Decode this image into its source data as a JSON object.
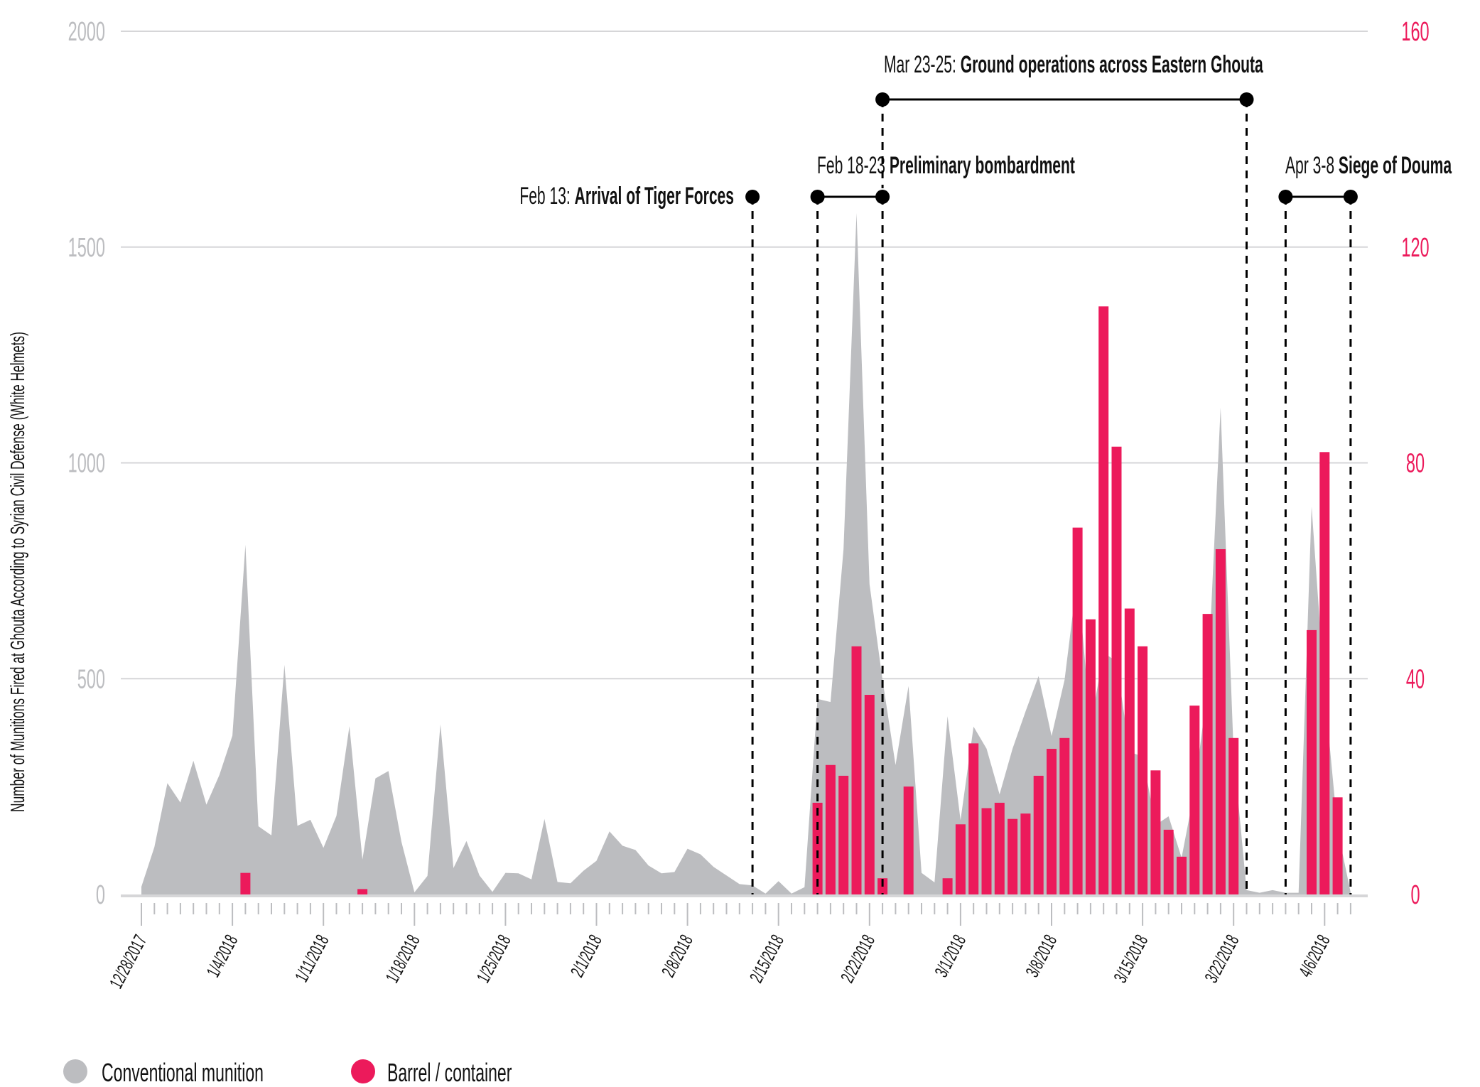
{
  "chart_data": {
    "type": "area+bar",
    "title": "",
    "ylabel": "Number of Munitions Fired at Ghouta According to Syrian Civil Defense (White Helmets)",
    "xlabel": "",
    "ylim_left": [
      0,
      2000
    ],
    "ylim_right": [
      0,
      160
    ],
    "yticks_left": [
      "0",
      "500",
      "1000",
      "1500",
      "2000"
    ],
    "yticks_left_values": [
      0,
      500,
      1000,
      1500,
      2000
    ],
    "yticks_right": [
      "0",
      "40",
      "80",
      "120",
      "160"
    ],
    "yticks_right_values": [
      0,
      40,
      80,
      120,
      160
    ],
    "grid": true,
    "n_points": 94,
    "xtick_labels": [
      {
        "index": 0,
        "label": "12/28/2017"
      },
      {
        "index": 7,
        "label": "1/4/2018"
      },
      {
        "index": 14,
        "label": "1/11/2018"
      },
      {
        "index": 21,
        "label": "1/18/2018"
      },
      {
        "index": 28,
        "label": "1/25/2018"
      },
      {
        "index": 35,
        "label": "2/1/2018"
      },
      {
        "index": 42,
        "label": "2/8/2018"
      },
      {
        "index": 49,
        "label": "2/15/2018"
      },
      {
        "index": 56,
        "label": "2/22/2018"
      },
      {
        "index": 63,
        "label": "3/1/2018"
      },
      {
        "index": 70,
        "label": "3/8/2018"
      },
      {
        "index": 77,
        "label": "3/15/2018"
      },
      {
        "index": 84,
        "label": "3/22/2018"
      },
      {
        "index": 91,
        "label": "4/6/2018"
      }
    ],
    "series": [
      {
        "name": "Conventional munition",
        "type": "area",
        "axis": "left",
        "color": "#bcbdc0",
        "values": [
          18,
          110,
          258,
          213,
          310,
          208,
          277,
          368,
          810,
          158,
          137,
          532,
          159,
          173,
          108,
          182,
          390,
          81,
          269,
          286,
          122,
          5,
          43,
          394,
          61,
          124,
          44,
          6,
          50,
          49,
          35,
          175,
          29,
          26,
          55,
          78,
          146,
          113,
          103,
          67,
          49,
          52,
          106,
          93,
          64,
          44,
          24,
          21,
          2,
          31,
          2,
          17,
          453,
          446,
          800,
          1579,
          719,
          497,
          300,
          483,
          50,
          28,
          413,
          172,
          389,
          338,
          232,
          338,
          424,
          506,
          367,
          497,
          740,
          390,
          560,
          540,
          330,
          320,
          161,
          181,
          85,
          242,
          480,
          1128,
          330,
          10,
          4,
          10,
          4,
          4,
          899,
          470,
          150,
          5
        ]
      },
      {
        "name": "Barrel / container",
        "type": "bar",
        "axis": "right",
        "color": "#ec1a5b",
        "values": [
          0,
          0,
          0,
          0,
          0,
          0,
          0,
          0,
          4,
          0,
          0,
          0,
          0,
          0,
          0,
          0,
          0,
          1,
          0,
          0,
          0,
          0,
          0,
          0,
          0,
          0,
          0,
          0,
          0,
          0,
          0,
          0,
          0,
          0,
          0,
          0,
          0,
          0,
          0,
          0,
          0,
          0,
          0,
          0,
          0,
          0,
          0,
          0,
          0,
          0,
          0,
          0,
          17,
          24,
          22,
          46,
          37,
          3,
          0,
          20,
          0,
          0,
          3,
          13,
          28,
          16,
          17,
          14,
          15,
          22,
          27,
          29,
          68,
          51,
          109,
          83,
          53,
          46,
          23,
          12,
          7,
          35,
          52,
          64,
          29,
          0,
          0,
          0,
          0,
          0,
          49,
          82,
          18,
          0
        ]
      }
    ],
    "events": [
      {
        "id": "feb13",
        "date_text": "Feb 13:",
        "label": "Arrival of Tiger Forces",
        "start": 47,
        "end": 47
      },
      {
        "id": "feb18",
        "date_text": "Feb 18-23",
        "label": "Preliminary bombardment",
        "start": 52,
        "end": 57
      },
      {
        "id": "mar23",
        "date_text": "Mar 23-25:",
        "label": "Ground operations across Eastern Ghouta",
        "start": 57,
        "end": 85
      },
      {
        "id": "apr3",
        "date_text": "Apr 3-8",
        "label": "Siege of Douma",
        "start": 88,
        "end": 93
      }
    ],
    "legend": {
      "placement": "bottom-left",
      "items": [
        {
          "label": "Conventional munition",
          "color": "#bcbdc0"
        },
        {
          "label": "Barrel / container",
          "color": "#ec1a5b"
        }
      ]
    }
  }
}
